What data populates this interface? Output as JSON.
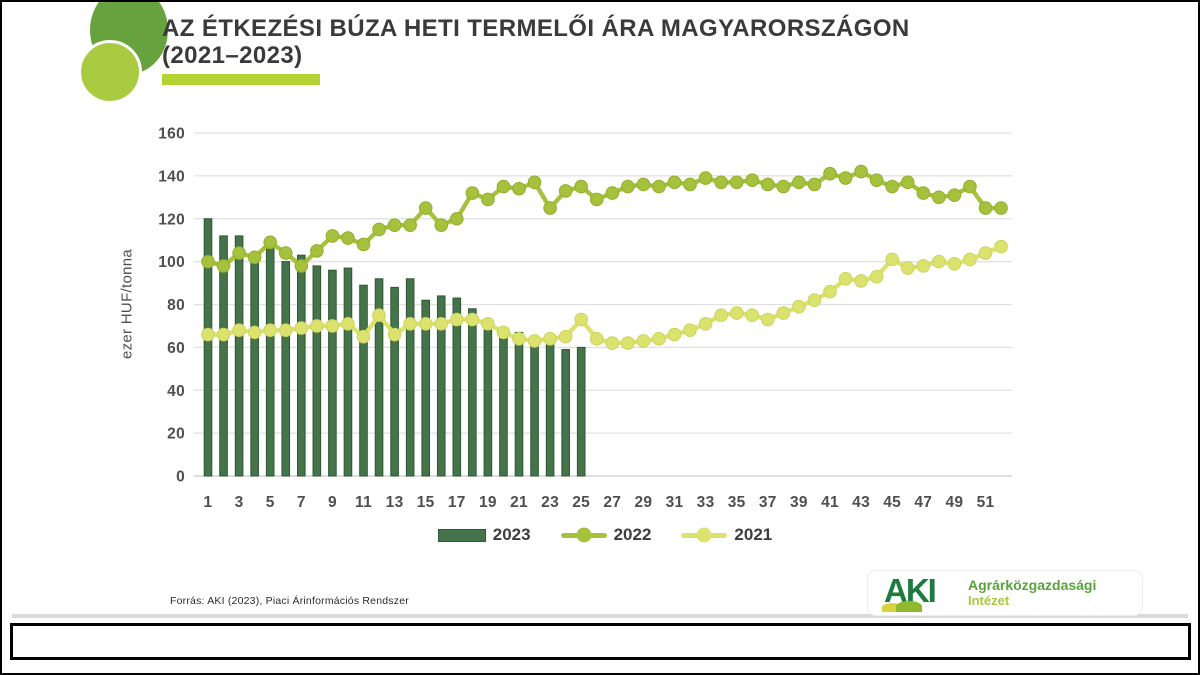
{
  "title": {
    "line1": "AZ ÉTKEZÉSI BÚZA HETI TERMELŐI ÁRA MAGYARORSZÁGON",
    "line2": "(2021–2023)"
  },
  "source_note": "Forrás: AKI (2023), Piaci Árinformációs Rendszer",
  "logo": {
    "acronym": "AKI",
    "name_line1": "Agrárközgazdasági",
    "name_line2": "Intézet"
  },
  "colors": {
    "title_underline": "#b5d333",
    "brand_circle_dark": "#68a23f",
    "brand_circle_light": "#a8cb41",
    "grid": "#e0e0e0",
    "axis_text": "#4f4f4f",
    "bar_2023": "#45744a",
    "line_2022": "#a6c23d",
    "line_2021": "#dce26e"
  },
  "chart_data": {
    "type": "bar+line",
    "title": "",
    "xlabel": "",
    "ylabel": "ezer HUF/tonna",
    "ylim": [
      0,
      160
    ],
    "ytick_step": 20,
    "grid": true,
    "legend_position": "bottom-center",
    "x": [
      1,
      2,
      3,
      4,
      5,
      6,
      7,
      8,
      9,
      10,
      11,
      12,
      13,
      14,
      15,
      16,
      17,
      18,
      19,
      20,
      21,
      22,
      23,
      24,
      25,
      26,
      27,
      28,
      29,
      30,
      31,
      32,
      33,
      34,
      35,
      36,
      37,
      38,
      39,
      40,
      41,
      42,
      43,
      44,
      45,
      46,
      47,
      48,
      49,
      50,
      51,
      52
    ],
    "x_ticks": [
      1,
      3,
      5,
      7,
      9,
      11,
      13,
      15,
      17,
      19,
      21,
      23,
      25,
      27,
      29,
      31,
      33,
      35,
      37,
      39,
      41,
      43,
      45,
      47,
      49,
      51
    ],
    "series": [
      {
        "name": "2023",
        "type": "bar",
        "color": "#45744a",
        "values": [
          120,
          112,
          112,
          100,
          107,
          100,
          103,
          98,
          96,
          97,
          89,
          92,
          88,
          92,
          82,
          84,
          83,
          78,
          68,
          68,
          67,
          63,
          62,
          59,
          60
        ]
      },
      {
        "name": "2022",
        "type": "line",
        "color": "#a6c23d",
        "values": [
          100,
          98,
          104,
          102,
          109,
          104,
          98,
          105,
          112,
          111,
          108,
          115,
          117,
          117,
          125,
          117,
          120,
          132,
          129,
          135,
          134,
          137,
          125,
          133,
          135,
          129,
          132,
          135,
          136,
          135,
          137,
          136,
          139,
          137,
          137,
          138,
          136,
          135,
          137,
          136,
          141,
          139,
          142,
          138,
          135,
          137,
          132,
          130,
          131,
          135,
          125,
          125
        ]
      },
      {
        "name": "2021",
        "type": "line",
        "color": "#dce26e",
        "values": [
          66,
          66,
          68,
          67,
          68,
          68,
          69,
          70,
          70,
          71,
          65,
          75,
          66,
          71,
          71,
          71,
          73,
          73,
          71,
          67,
          64,
          63,
          64,
          65,
          73,
          64,
          62,
          62,
          63,
          64,
          66,
          68,
          71,
          75,
          76,
          75,
          73,
          76,
          79,
          82,
          86,
          92,
          91,
          93,
          101,
          97,
          98,
          100,
          99,
          101,
          104,
          107
        ]
      }
    ]
  }
}
